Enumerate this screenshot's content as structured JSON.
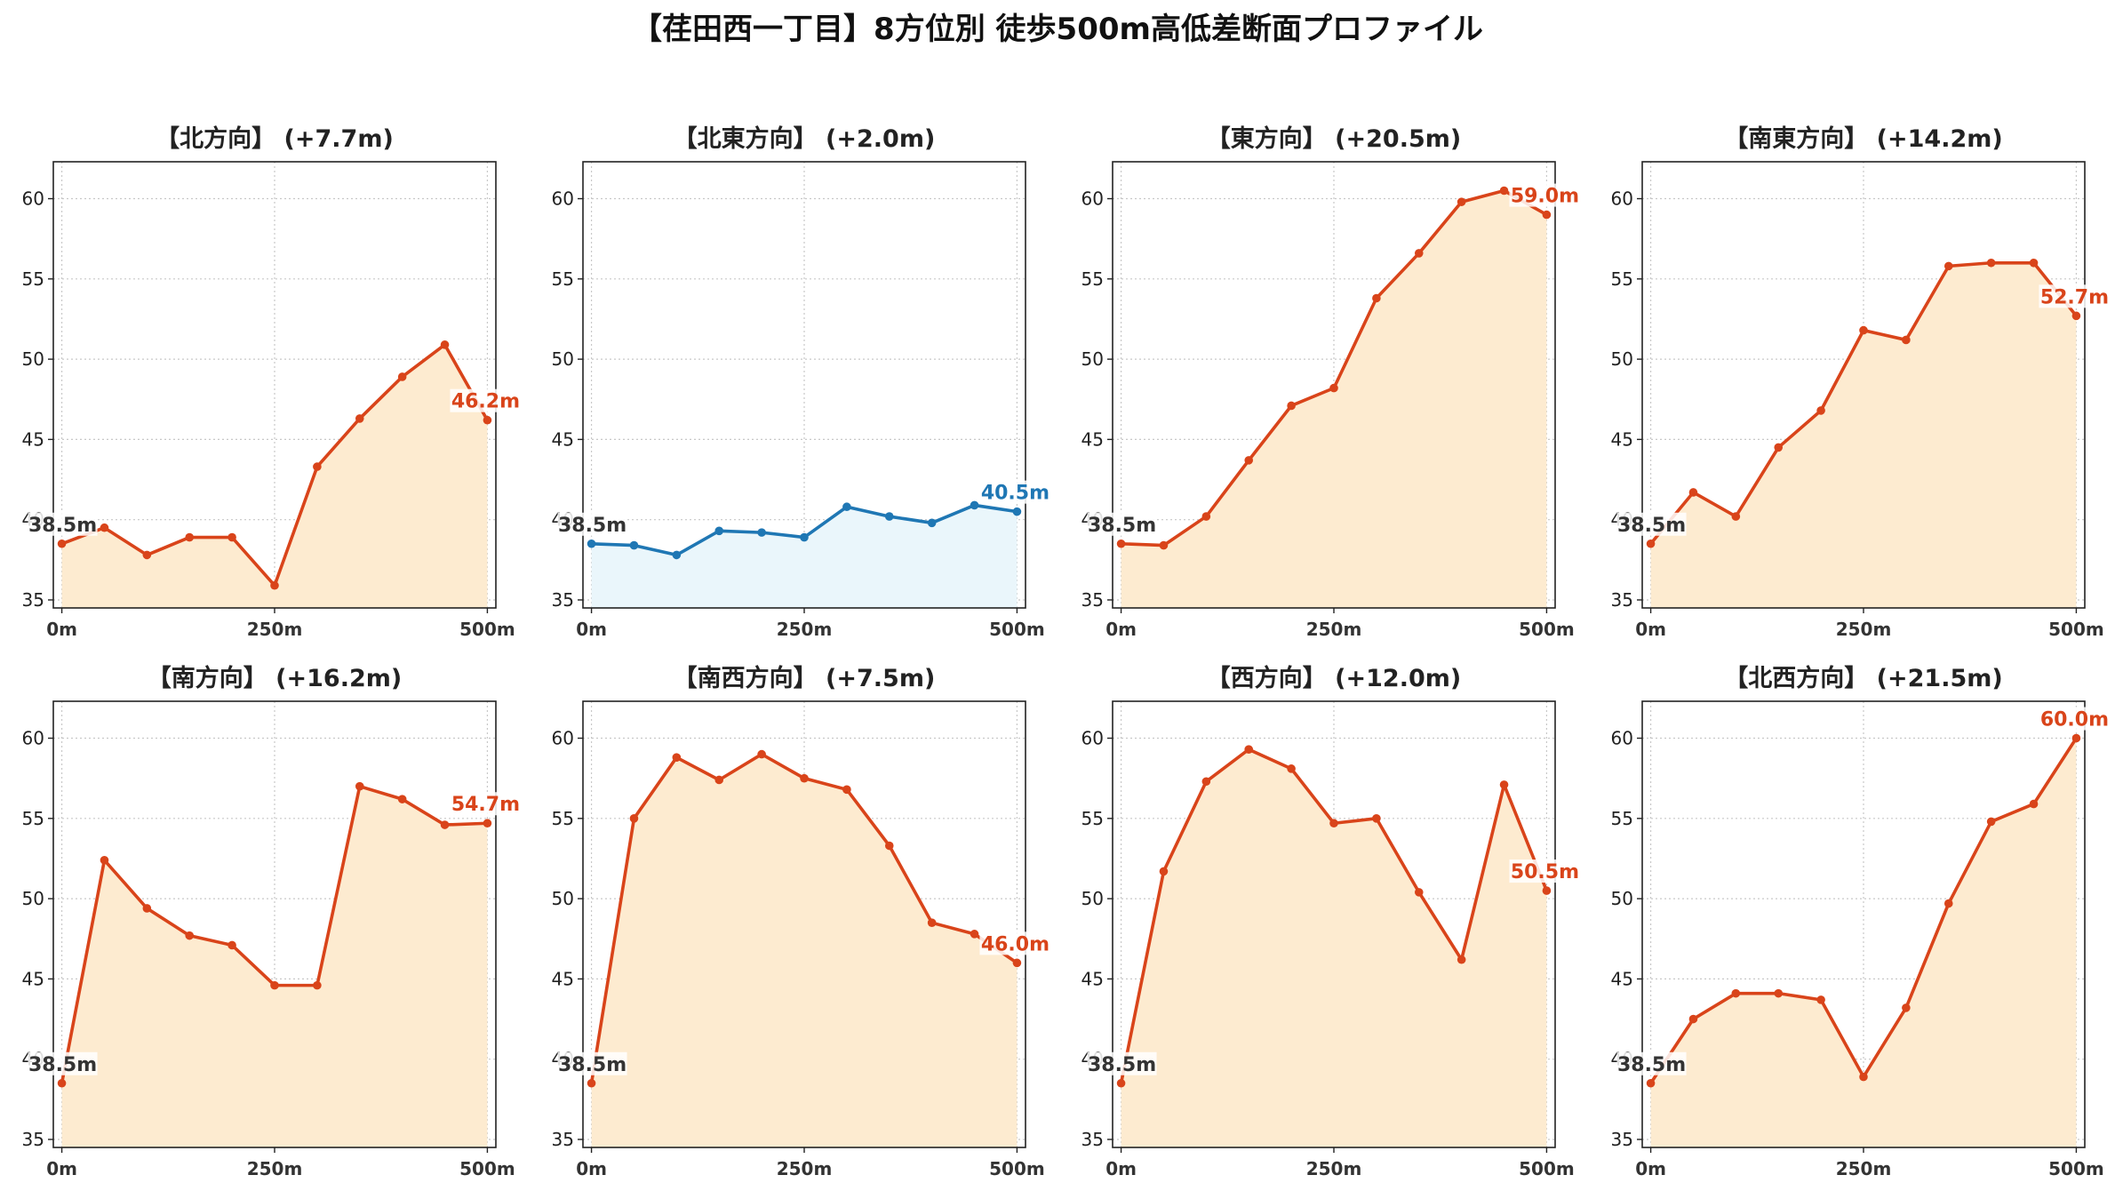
{
  "title": "【荏田西一丁目】8方位別 徒歩500m高低差断面プロファイル",
  "colors": {
    "up_line": "#d9441a",
    "up_fill": "#fdebd0",
    "flat_line": "#1f77b4",
    "flat_fill": "#eaf6fb",
    "start_label": "#333333"
  },
  "chart_data": [
    {
      "type": "area",
      "title": "【北方向】 (+7.7m)",
      "style": "up",
      "x": [
        0,
        50,
        100,
        150,
        200,
        250,
        300,
        350,
        400,
        450,
        500
      ],
      "y": [
        38.5,
        39.5,
        37.8,
        38.9,
        38.9,
        35.9,
        43.3,
        46.3,
        48.9,
        50.9,
        46.2
      ],
      "start_label": "38.5m",
      "end_label": "46.2m",
      "xticks": [
        "0m",
        "250m",
        "500m"
      ],
      "yticks": [
        35,
        40,
        45,
        50,
        55,
        60
      ],
      "ylim": [
        34.5,
        62.3
      ],
      "xlim": [
        -10,
        510
      ],
      "grid": true
    },
    {
      "type": "area",
      "title": "【北東方向】 (+2.0m)",
      "style": "flat",
      "x": [
        0,
        50,
        100,
        150,
        200,
        250,
        300,
        350,
        400,
        450,
        500
      ],
      "y": [
        38.5,
        38.4,
        37.8,
        39.3,
        39.2,
        38.9,
        40.8,
        40.2,
        39.8,
        40.9,
        40.5
      ],
      "start_label": "38.5m",
      "end_label": "40.5m",
      "xticks": [
        "0m",
        "250m",
        "500m"
      ],
      "yticks": [
        35,
        40,
        45,
        50,
        55,
        60
      ],
      "ylim": [
        34.5,
        62.3
      ],
      "xlim": [
        -10,
        510
      ],
      "grid": true
    },
    {
      "type": "area",
      "title": "【東方向】 (+20.5m)",
      "style": "up",
      "x": [
        0,
        50,
        100,
        150,
        200,
        250,
        300,
        350,
        400,
        450,
        500
      ],
      "y": [
        38.5,
        38.4,
        40.2,
        43.7,
        47.1,
        48.2,
        53.8,
        56.6,
        59.8,
        60.5,
        59.0
      ],
      "start_label": "38.5m",
      "end_label": "59.0m",
      "xticks": [
        "0m",
        "250m",
        "500m"
      ],
      "yticks": [
        35,
        40,
        45,
        50,
        55,
        60
      ],
      "ylim": [
        34.5,
        62.3
      ],
      "xlim": [
        -10,
        510
      ],
      "grid": true
    },
    {
      "type": "area",
      "title": "【南東方向】 (+14.2m)",
      "style": "up",
      "x": [
        0,
        50,
        100,
        150,
        200,
        250,
        300,
        350,
        400,
        450,
        500
      ],
      "y": [
        38.5,
        41.7,
        40.2,
        44.5,
        46.8,
        51.8,
        51.2,
        55.8,
        56.0,
        56.0,
        52.7
      ],
      "start_label": "38.5m",
      "end_label": "52.7m",
      "xticks": [
        "0m",
        "250m",
        "500m"
      ],
      "yticks": [
        35,
        40,
        45,
        50,
        55,
        60
      ],
      "ylim": [
        34.5,
        62.3
      ],
      "xlim": [
        -10,
        510
      ],
      "grid": true
    },
    {
      "type": "area",
      "title": "【南方向】 (+16.2m)",
      "style": "up",
      "x": [
        0,
        50,
        100,
        150,
        200,
        250,
        300,
        350,
        400,
        450,
        500
      ],
      "y": [
        38.5,
        52.4,
        49.4,
        47.7,
        47.1,
        44.6,
        44.6,
        57.0,
        56.2,
        54.6,
        54.7
      ],
      "start_label": "38.5m",
      "end_label": "54.7m",
      "xticks": [
        "0m",
        "250m",
        "500m"
      ],
      "yticks": [
        35,
        40,
        45,
        50,
        55,
        60
      ],
      "ylim": [
        34.5,
        62.3
      ],
      "xlim": [
        -10,
        510
      ],
      "grid": true
    },
    {
      "type": "area",
      "title": "【南西方向】 (+7.5m)",
      "style": "up",
      "x": [
        0,
        50,
        100,
        150,
        200,
        250,
        300,
        350,
        400,
        450,
        500
      ],
      "y": [
        38.5,
        55.0,
        58.8,
        57.4,
        59.0,
        57.5,
        56.8,
        53.3,
        48.5,
        47.8,
        46.0
      ],
      "start_label": "38.5m",
      "end_label": "46.0m",
      "xticks": [
        "0m",
        "250m",
        "500m"
      ],
      "yticks": [
        35,
        40,
        45,
        50,
        55,
        60
      ],
      "ylim": [
        34.5,
        62.3
      ],
      "xlim": [
        -10,
        510
      ],
      "grid": true
    },
    {
      "type": "area",
      "title": "【西方向】 (+12.0m)",
      "style": "up",
      "x": [
        0,
        50,
        100,
        150,
        200,
        250,
        300,
        350,
        400,
        450,
        500
      ],
      "y": [
        38.5,
        51.7,
        57.3,
        59.3,
        58.1,
        54.7,
        55.0,
        50.4,
        46.2,
        57.1,
        50.5
      ],
      "start_label": "38.5m",
      "end_label": "50.5m",
      "xticks": [
        "0m",
        "250m",
        "500m"
      ],
      "yticks": [
        35,
        40,
        45,
        50,
        55,
        60
      ],
      "ylim": [
        34.5,
        62.3
      ],
      "xlim": [
        -10,
        510
      ],
      "grid": true
    },
    {
      "type": "area",
      "title": "【北西方向】 (+21.5m)",
      "style": "up",
      "x": [
        0,
        50,
        100,
        150,
        200,
        250,
        300,
        350,
        400,
        450,
        500
      ],
      "y": [
        38.5,
        42.5,
        44.1,
        44.1,
        43.7,
        38.9,
        43.2,
        49.7,
        54.8,
        55.9,
        60.0
      ],
      "start_label": "38.5m",
      "end_label": "60.0m",
      "xticks": [
        "0m",
        "250m",
        "500m"
      ],
      "yticks": [
        35,
        40,
        45,
        50,
        55,
        60
      ],
      "ylim": [
        34.5,
        62.3
      ],
      "xlim": [
        -10,
        510
      ],
      "grid": true
    }
  ]
}
